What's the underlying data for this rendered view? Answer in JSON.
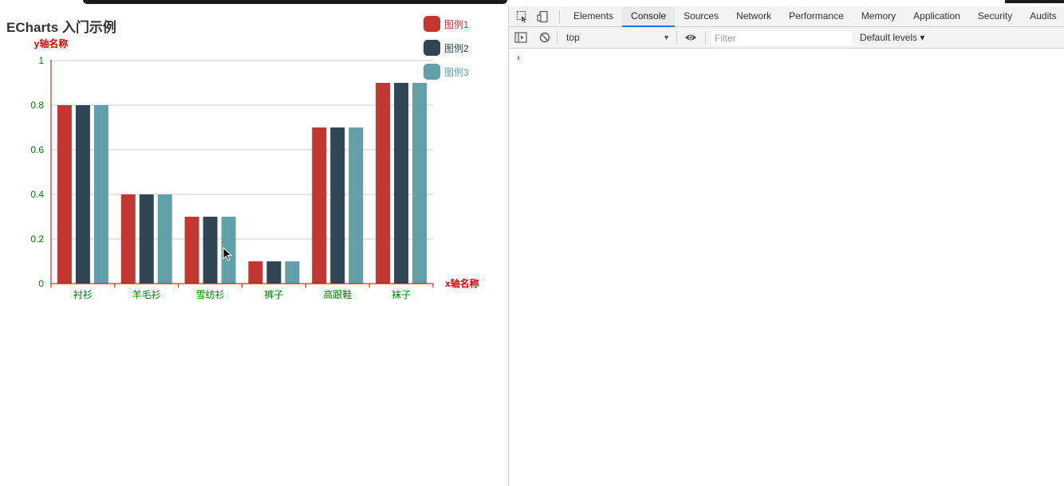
{
  "chart": {
    "title": "ECharts 入门示例"
  },
  "chart_data": {
    "type": "bar",
    "title": "ECharts 入门示例",
    "xlabel": "x轴名称",
    "ylabel": "y轴名称",
    "categories": [
      "衬衫",
      "羊毛衫",
      "雪纺衫",
      "裤子",
      "高跟鞋",
      "袜子"
    ],
    "series": [
      {
        "name": "图例1",
        "values": [
          0.8,
          0.4,
          0.3,
          0.1,
          0.7,
          0.9
        ],
        "color": "#c23531"
      },
      {
        "name": "图例2",
        "values": [
          0.8,
          0.4,
          0.3,
          0.1,
          0.7,
          0.9
        ],
        "color": "#2f4554"
      },
      {
        "name": "图例3",
        "values": [
          0.8,
          0.4,
          0.3,
          0.1,
          0.7,
          0.9
        ],
        "color": "#61a0a8"
      }
    ],
    "ylim": [
      0,
      1
    ],
    "yticks": [
      "0",
      "0.2",
      "0.4",
      "0.6",
      "0.8",
      "1"
    ],
    "grid": true,
    "legend_position": "top-right",
    "axis_color": "#cc0000",
    "tick_label_color": "#008000",
    "axis_name_color": "#e00000"
  },
  "devtools": {
    "tabs": [
      "Elements",
      "Console",
      "Sources",
      "Network",
      "Performance",
      "Memory",
      "Application",
      "Security",
      "Audits"
    ],
    "active_tab": "Console",
    "context": "top",
    "filter_placeholder": "Filter",
    "levels_label": "Default levels ▾",
    "prompt": "›",
    "accent_color": "#1a73e8"
  }
}
